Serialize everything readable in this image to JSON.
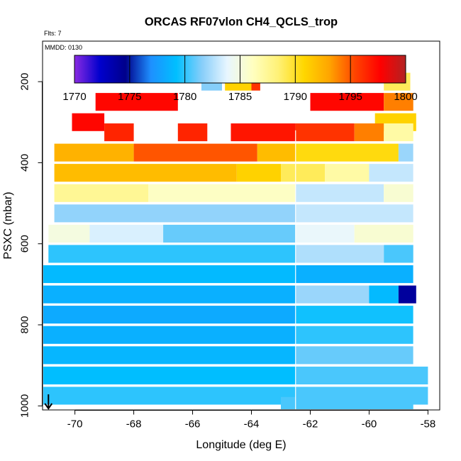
{
  "chart_data": {
    "type": "heatmap",
    "title": "ORCAS RF07vlon CH4_QCLS_trop",
    "flts_label": "Flts: 7",
    "mmdd_label": "MMDD: 0130",
    "xlabel": "Longitude (deg E)",
    "ylabel": "PSXC (mbar)",
    "xlim": [
      -71.1,
      -57.6
    ],
    "ylim": [
      1010,
      100
    ],
    "x_ticks": [
      -70,
      -68,
      -66,
      -64,
      -62,
      -60,
      -58
    ],
    "y_ticks": [
      200,
      400,
      600,
      800,
      1000
    ],
    "colorbar": {
      "min": 1770,
      "max": 1800,
      "ticks": [
        1770,
        1775,
        1780,
        1785,
        1790,
        1795,
        1800
      ],
      "colors": [
        "#8a2be2",
        "#0000cd",
        "#00008b",
        "#1e90ff",
        "#00bfff",
        "#87cefa",
        "#e8f6ff",
        "#ffffc0",
        "#fff176",
        "#ffd700",
        "#ffa500",
        "#ff4500",
        "#ff0000",
        "#b22222"
      ]
    },
    "vertical_line_lon": -62.5,
    "arrow_lon": -70.9,
    "rows": [
      {
        "p": 200,
        "segments": [
          [
            -65.7,
            -65.0,
            1781.5
          ],
          [
            -64.9,
            -64.0,
            1791
          ],
          [
            -64.0,
            -63.7,
            1796
          ]
        ]
      },
      {
        "p": 200,
        "segments": [
          [
            -59.5,
            -58.6,
            1789
          ]
        ]
      },
      {
        "p": 250,
        "segments": [
          [
            -69.3,
            -66.5,
            1797.5
          ],
          [
            -62.0,
            -59.5,
            1797.5
          ],
          [
            -59.5,
            -58.5,
            1794
          ]
        ]
      },
      {
        "p": 300,
        "segments": [
          [
            -70.1,
            -69.0,
            1797.5
          ],
          [
            -59.8,
            -58.4,
            1791
          ]
        ]
      },
      {
        "p": 325,
        "segments": [
          [
            -69.0,
            -68.0,
            1796.5
          ],
          [
            -66.5,
            -65.5,
            1796.5
          ],
          [
            -64.7,
            -62.5,
            1797
          ],
          [
            -62.5,
            -60.5,
            1796
          ],
          [
            -60.5,
            -59.5,
            1794
          ],
          [
            -59.5,
            -58.5,
            1787
          ]
        ]
      },
      {
        "p": 375,
        "segments": [
          [
            -70.7,
            -68.0,
            1792.5
          ],
          [
            -68.0,
            -63.8,
            1795
          ],
          [
            -63.8,
            -62.5,
            1792
          ],
          [
            -62.5,
            -59.0,
            1790.5
          ],
          [
            -59.0,
            -58.5,
            1782
          ]
        ]
      },
      {
        "p": 425,
        "segments": [
          [
            -70.7,
            -64.5,
            1792
          ],
          [
            -64.5,
            -63.0,
            1791
          ],
          [
            -63.0,
            -61.5,
            1789
          ],
          [
            -61.5,
            -60.0,
            1787
          ],
          [
            -60.0,
            -58.5,
            1783
          ]
        ]
      },
      {
        "p": 475,
        "segments": [
          [
            -70.7,
            -67.5,
            1787.5
          ],
          [
            -67.5,
            -62.5,
            1786
          ],
          [
            -62.5,
            -59.5,
            1783
          ],
          [
            -59.5,
            -58.5,
            1785.5
          ]
        ]
      },
      {
        "p": 525,
        "segments": [
          [
            -70.7,
            -62.5,
            1781.8
          ],
          [
            -62.5,
            -58.5,
            1783
          ]
        ]
      },
      {
        "p": 575,
        "segments": [
          [
            -70.9,
            -69.5,
            1785
          ],
          [
            -69.5,
            -67.0,
            1783.5
          ],
          [
            -67.0,
            -62.5,
            1781
          ],
          [
            -62.5,
            -60.5,
            1784
          ],
          [
            -60.5,
            -58.5,
            1785.5
          ]
        ]
      },
      {
        "p": 625,
        "segments": [
          [
            -70.9,
            -62.5,
            1780
          ],
          [
            -62.5,
            -59.5,
            1782.5
          ],
          [
            -59.5,
            -58.5,
            1780.5
          ]
        ]
      },
      {
        "p": 675,
        "segments": [
          [
            -71.2,
            -62.5,
            1779
          ],
          [
            -62.5,
            -58.5,
            1778.5
          ]
        ]
      },
      {
        "p": 725,
        "segments": [
          [
            -71.2,
            -62.5,
            1778.5
          ],
          [
            -62.5,
            -60.0,
            1782
          ],
          [
            -60.0,
            -59.0,
            1779
          ],
          [
            -59.0,
            -58.4,
            1774
          ]
        ]
      },
      {
        "p": 775,
        "segments": [
          [
            -71.2,
            -62.5,
            1778.2
          ],
          [
            -62.5,
            -58.5,
            1779.5
          ]
        ]
      },
      {
        "p": 825,
        "segments": [
          [
            -71.2,
            -62.5,
            1778.5
          ],
          [
            -62.5,
            -58.5,
            1780
          ]
        ]
      },
      {
        "p": 875,
        "segments": [
          [
            -71.2,
            -62.5,
            1778.8
          ],
          [
            -62.5,
            -58.5,
            1781
          ]
        ]
      },
      {
        "p": 925,
        "segments": [
          [
            -71.2,
            -62.5,
            1779.2
          ],
          [
            -62.5,
            -58.0,
            1780.5
          ]
        ]
      },
      {
        "p": 975,
        "segments": [
          [
            -71.2,
            -62.5,
            1780
          ],
          [
            -62.5,
            -58.0,
            1780.5
          ]
        ]
      },
      {
        "p": 1000,
        "segments": [
          [
            -63.0,
            -58.5,
            1780.5
          ]
        ]
      }
    ]
  }
}
